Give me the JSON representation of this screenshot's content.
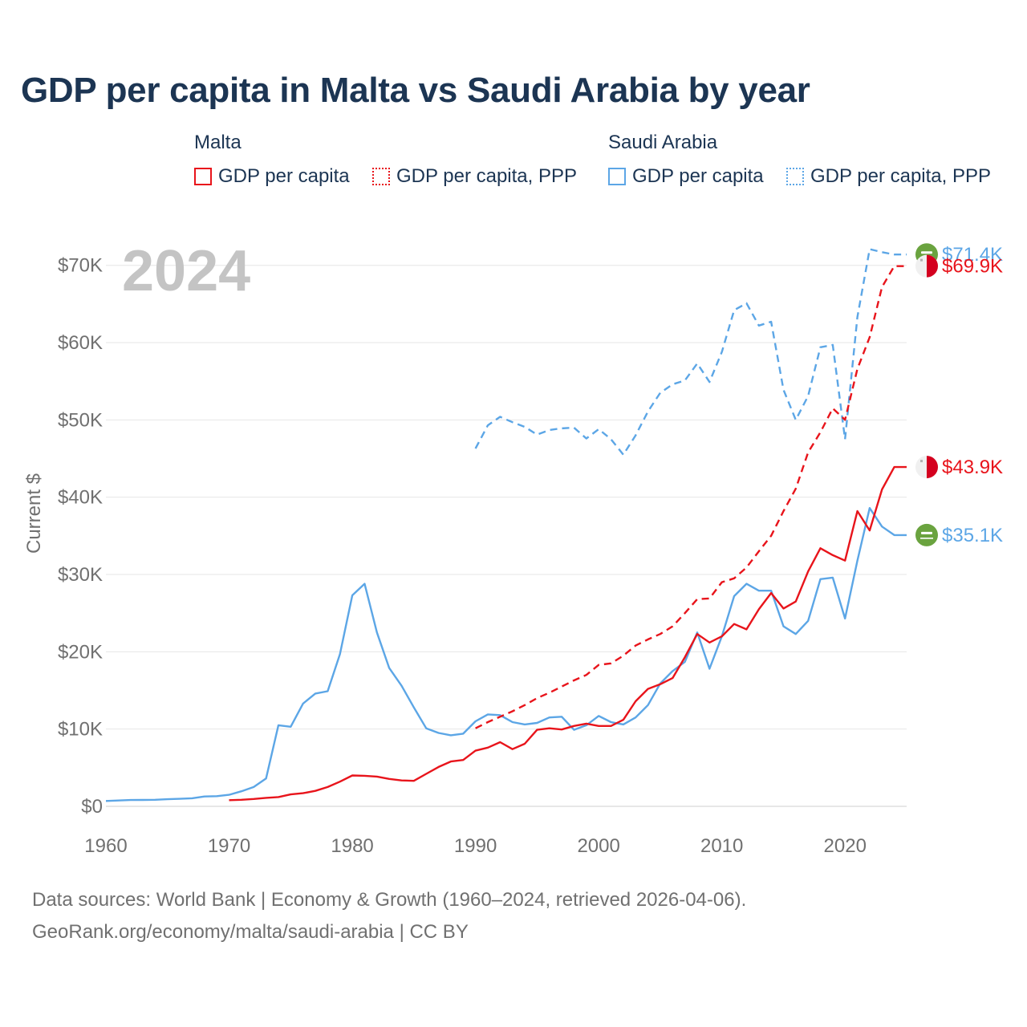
{
  "title": "GDP per capita in Malta vs Saudi Arabia by year",
  "legend": {
    "malta_group": "Malta",
    "saudi_group": "Saudi Arabia",
    "gdp_label": "GDP per capita",
    "ppp_label": "GDP per capita, PPP"
  },
  "footer": {
    "line1": "Data sources: World Bank | Economy & Growth (1960–2024, retrieved 2026-04-06).",
    "line2": "GeoRank.org/economy/malta/saudi-arabia | CC BY"
  },
  "colors": {
    "malta": "#e8141b",
    "saudi": "#5ca6e6",
    "grid": "#e6e6e6",
    "axis_text": "#707070",
    "year_label": "#c4c4c4"
  },
  "chart_data": {
    "type": "line",
    "year_label": "2024",
    "ylabel": "Current $",
    "xlim": [
      1960,
      2025
    ],
    "ylim": [
      0,
      72000
    ],
    "x_ticks": [
      1960,
      1970,
      1980,
      1990,
      2000,
      2010,
      2020
    ],
    "y_ticks": [
      0,
      10000,
      20000,
      30000,
      40000,
      50000,
      60000,
      70000
    ],
    "y_tick_labels": [
      "$0",
      "$10K",
      "$20K",
      "$30K",
      "$40K",
      "$50K",
      "$60K",
      "$70K"
    ],
    "series": [
      {
        "name": "Saudi Arabia GDP per capita",
        "country": "Saudi Arabia",
        "color": "#5ca6e6",
        "dashed": false,
        "end_label": "$35.1K",
        "end_icon": "saudi-flag",
        "start_year": 1960,
        "values": [
          700,
          760,
          820,
          830,
          850,
          920,
          980,
          1050,
          1280,
          1320,
          1500,
          1950,
          2500,
          3600,
          10500,
          10300,
          13300,
          14600,
          14900,
          19700,
          27300,
          28800,
          22500,
          17900,
          15600,
          12800,
          10100,
          9500,
          9200,
          9400,
          11000,
          11900,
          11800,
          10900,
          10600,
          10800,
          11500,
          11600,
          9900,
          10500,
          11700,
          10900,
          10600,
          11500,
          13100,
          15900,
          17500,
          18700,
          22500,
          17800,
          22000,
          27200,
          28800,
          27900,
          27900,
          23300,
          22300,
          24000,
          29400,
          29600,
          24300,
          31800,
          38600,
          36200,
          35100,
          35100
        ]
      },
      {
        "name": "Saudi Arabia GDP per capita, PPP",
        "country": "Saudi Arabia",
        "color": "#5ca6e6",
        "dashed": true,
        "end_label": "$71.4K",
        "end_icon": "saudi-flag",
        "start_year": 1990,
        "values": [
          46300,
          49300,
          50400,
          49700,
          49100,
          48100,
          48700,
          48900,
          49000,
          47600,
          48800,
          47500,
          45500,
          48000,
          51100,
          53500,
          54600,
          55100,
          57300,
          54900,
          58800,
          64200,
          65100,
          62200,
          62700,
          53900,
          50000,
          53100,
          59400,
          59700,
          47500,
          63300,
          72100,
          71700,
          71400,
          71400
        ]
      },
      {
        "name": "Malta GDP per capita",
        "country": "Malta",
        "color": "#e8141b",
        "dashed": false,
        "end_label": "$43.9K",
        "end_icon": "malta-flag",
        "start_year": 1970,
        "values": [
          800,
          850,
          950,
          1100,
          1200,
          1550,
          1700,
          2000,
          2500,
          3200,
          4000,
          3950,
          3850,
          3550,
          3350,
          3300,
          4200,
          5100,
          5800,
          6000,
          7200,
          7600,
          8300,
          7400,
          8100,
          9900,
          10100,
          9950,
          10400,
          10700,
          10400,
          10400,
          11200,
          13600,
          15200,
          15800,
          16600,
          19300,
          22300,
          21200,
          22000,
          23600,
          22900,
          25500,
          27600,
          25600,
          26500,
          30400,
          33400,
          32500,
          31800,
          38200,
          35700,
          41000,
          43900,
          43900
        ]
      },
      {
        "name": "Malta GDP per capita, PPP",
        "country": "Malta",
        "color": "#e8141b",
        "dashed": true,
        "end_label": "$69.9K",
        "end_icon": "malta-flag",
        "start_year": 1990,
        "values": [
          10100,
          10900,
          11600,
          12300,
          13100,
          14000,
          14700,
          15500,
          16300,
          17000,
          18300,
          18500,
          19500,
          20800,
          21600,
          22300,
          23300,
          25000,
          26800,
          26900,
          29000,
          29500,
          30900,
          33000,
          35000,
          38200,
          41100,
          45800,
          48400,
          51500,
          50000,
          56600,
          60700,
          67200,
          69900,
          69900
        ]
      }
    ]
  }
}
